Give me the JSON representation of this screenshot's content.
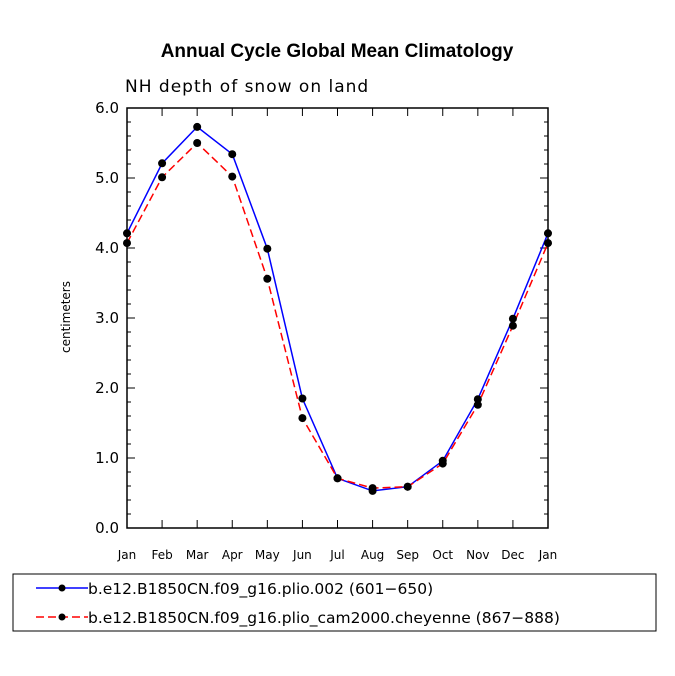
{
  "chart_data": {
    "type": "line",
    "title": "Annual Cycle Global Mean Climatology",
    "subtitle": "NH depth of snow on land",
    "xlabel": "",
    "ylabel": "centimeters",
    "ylim": [
      0,
      6
    ],
    "yticks": [
      "0.0",
      "1.0",
      "2.0",
      "3.0",
      "4.0",
      "5.0",
      "6.0"
    ],
    "categories": [
      "Jan",
      "Feb",
      "Mar",
      "Apr",
      "May",
      "Jun",
      "Jul",
      "Aug",
      "Sep",
      "Oct",
      "Nov",
      "Dec",
      "Jan"
    ],
    "series": [
      {
        "name": "b.e12.B1850CN.f09_g16.plio.002 (601-650)",
        "color": "#0000ff",
        "dash": "solid",
        "values": [
          4.21,
          5.21,
          5.73,
          5.34,
          3.99,
          1.85,
          0.71,
          0.53,
          0.59,
          0.96,
          1.84,
          2.99,
          4.21
        ]
      },
      {
        "name": "b.e12.B1850CN.f09_g16.plio_cam2000.cheyenne (867-888)",
        "color": "#ff0000",
        "dash": "dashed",
        "values": [
          4.07,
          5.01,
          5.5,
          5.02,
          3.56,
          1.57,
          0.71,
          0.57,
          0.59,
          0.92,
          1.76,
          2.89,
          4.07
        ]
      }
    ],
    "legend": {
      "position": "bottom",
      "entries": [
        "b.e12.B1850CN.f09_g16.plio.002 (601−650)",
        "b.e12.B1850CN.f09_g16.plio_cam2000.cheyenne (867−888)"
      ]
    }
  }
}
